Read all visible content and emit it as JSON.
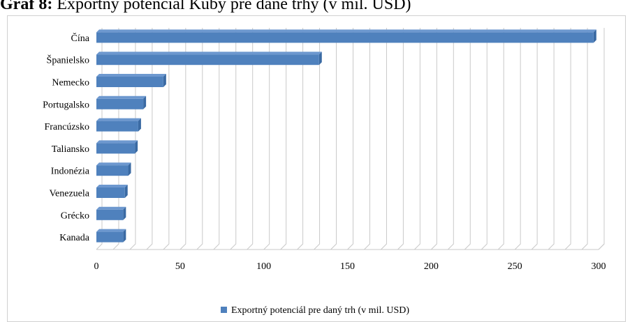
{
  "title": {
    "prefix": "Graf 8:",
    "text": "Exportný potenciál Kuby pre dané trhy (v mil. USD)"
  },
  "colors": {
    "bar": "#4f81bd",
    "bar_dark": "#3a6aa3",
    "grid": "#c9c9c9"
  },
  "chart_data": {
    "type": "bar",
    "orientation": "horizontal",
    "categories": [
      "Čína",
      "Španielsko",
      "Nemecko",
      "Portugalsko",
      "Francúzsko",
      "Taliansko",
      "Indonézia",
      "Venezuela",
      "Grécko",
      "Kanada"
    ],
    "series": [
      {
        "name": "Exportný potenciál pre daný trh (v mil. USD)",
        "values": [
          297,
          133,
          40,
          28,
          25,
          23,
          19,
          17,
          16,
          16
        ]
      }
    ],
    "xlim": [
      0,
      300
    ],
    "xticks": [
      0,
      50,
      100,
      150,
      200,
      250,
      300
    ],
    "grid": true,
    "legend": "bottom"
  }
}
